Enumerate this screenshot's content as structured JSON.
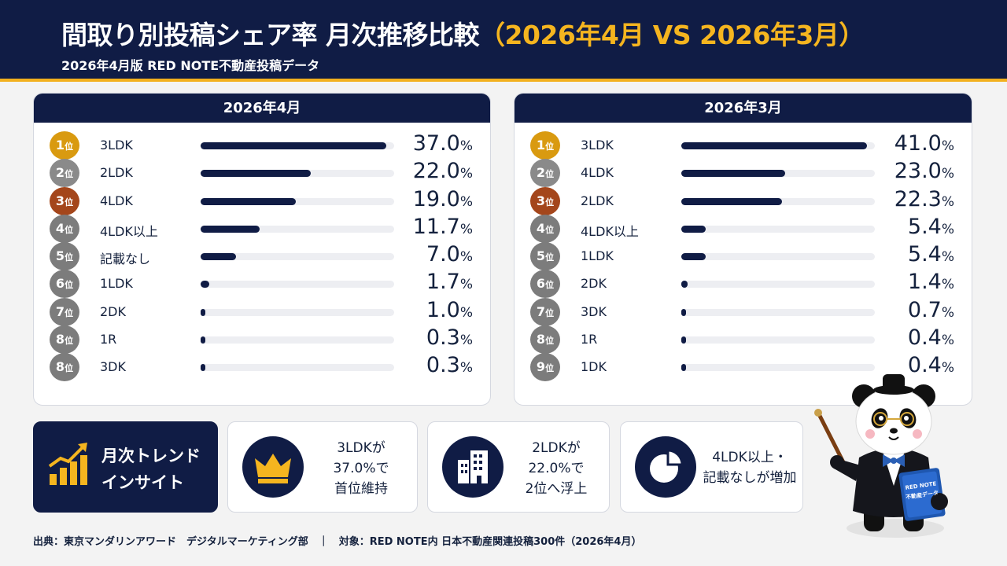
{
  "header": {
    "title_main": "間取り別投稿シェア率 月次推移比較",
    "title_highlight": "（2026年4月 VS 2026年3月）",
    "subtitle": "2026年4月版 RED NOTE不動産投稿データ"
  },
  "rank_unit": "位",
  "pct_unit": "%",
  "colors": {
    "navy": "#101c45",
    "gold": "#d99a10",
    "silver": "#8a8a8a",
    "bronze": "#a4461b",
    "grey": "#7c7c7c",
    "accent": "#f5b51f"
  },
  "chart_data": [
    {
      "type": "bar",
      "title": "2026年4月",
      "ranks": [
        "1",
        "2",
        "3",
        "4",
        "5",
        "6",
        "7",
        "8",
        "8"
      ],
      "categories": [
        "3LDK",
        "2LDK",
        "4LDK",
        "4LDK以上",
        "記載なし",
        "1LDK",
        "2DK",
        "1R",
        "3DK"
      ],
      "values": [
        37.0,
        22.0,
        19.0,
        11.7,
        7.0,
        1.7,
        1.0,
        0.3,
        0.3
      ],
      "value_labels": [
        "37.0",
        "22.0",
        "19.0",
        "11.7",
        "7.0",
        "1.7",
        "1.0",
        "0.3",
        "0.3"
      ],
      "xlim": [
        0,
        37.0
      ]
    },
    {
      "type": "bar",
      "title": "2026年3月",
      "ranks": [
        "1",
        "2",
        "3",
        "4",
        "5",
        "6",
        "7",
        "8",
        "9"
      ],
      "categories": [
        "3LDK",
        "4LDK",
        "2LDK",
        "4LDK以上",
        "1LDK",
        "2DK",
        "3DK",
        "1R",
        "1DK"
      ],
      "values": [
        41.0,
        23.0,
        22.3,
        5.4,
        5.4,
        1.4,
        0.7,
        0.4,
        0.4
      ],
      "value_labels": [
        "41.0",
        "23.0",
        "22.3",
        "5.4",
        "5.4",
        "1.4",
        "0.7",
        "0.4",
        "0.4"
      ],
      "xlim": [
        0,
        41.0
      ]
    }
  ],
  "insights": {
    "heading_line1": "月次トレンド",
    "heading_line2": "インサイト",
    "card1": {
      "line1": "3LDKが",
      "line2": "37.0%で",
      "line3": "首位維持",
      "icon": "crown-icon"
    },
    "card2": {
      "line1": "2LDKが",
      "line2": "22.0%で",
      "line3": "2位へ浮上",
      "icon": "building-icon"
    },
    "card3": {
      "line1": "4LDK以上・",
      "line2": "記載なしが増加",
      "icon": "pie-chart-icon"
    }
  },
  "footer": "出典：東京マンダリンアワード　デジタルマーケティング部　｜　対象：RED NOTE内 日本不動産関連投稿300件（2026年4月）",
  "mascot": {
    "book_line1": "RED NOTE",
    "book_line2": "不動産データ"
  }
}
